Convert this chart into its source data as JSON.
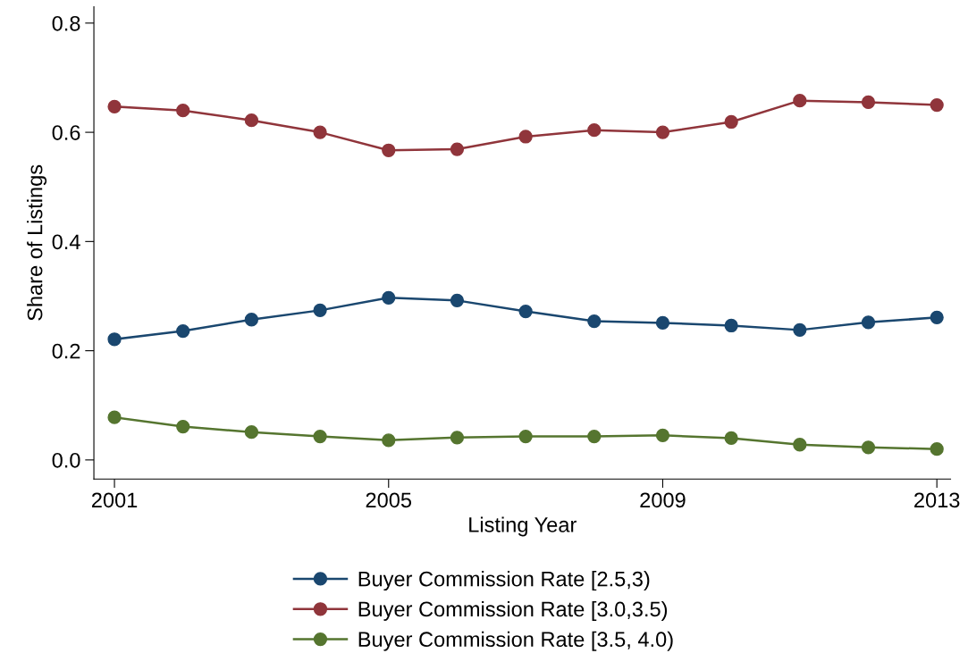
{
  "chart_data": {
    "type": "line",
    "xlabel": "Listing Year",
    "ylabel": "Share of Listings",
    "x": [
      2001,
      2002,
      2003,
      2004,
      2005,
      2006,
      2007,
      2008,
      2009,
      2010,
      2011,
      2012,
      2013
    ],
    "series": [
      {
        "name": "Buyer Commission Rate [2.5,3)",
        "color": "#1a476f",
        "values": [
          0.221,
          0.236,
          0.257,
          0.274,
          0.297,
          0.292,
          0.272,
          0.254,
          0.251,
          0.246,
          0.238,
          0.252,
          0.261
        ]
      },
      {
        "name": "Buyer Commission Rate [3.0,3.5)",
        "color": "#90353b",
        "values": [
          0.647,
          0.64,
          0.622,
          0.6,
          0.567,
          0.569,
          0.592,
          0.604,
          0.6,
          0.619,
          0.658,
          0.655,
          0.65
        ]
      },
      {
        "name": "Buyer Commission Rate [3.5, 4.0)",
        "color": "#55752f",
        "values": [
          0.078,
          0.061,
          0.051,
          0.043,
          0.036,
          0.041,
          0.043,
          0.043,
          0.045,
          0.04,
          0.028,
          0.023,
          0.02
        ]
      }
    ],
    "xlim": [
      2000.7,
      2013.2
    ],
    "xticks": [
      2001,
      2005,
      2009,
      2013
    ],
    "ylim": [
      -0.035,
      0.83
    ],
    "yticks": [
      {
        "value": 0,
        "label": "0.0"
      },
      0.2,
      0.4,
      0.6,
      0.8
    ],
    "grid": false,
    "legend": "bottom",
    "marker": "circle",
    "line_style": "solid"
  }
}
